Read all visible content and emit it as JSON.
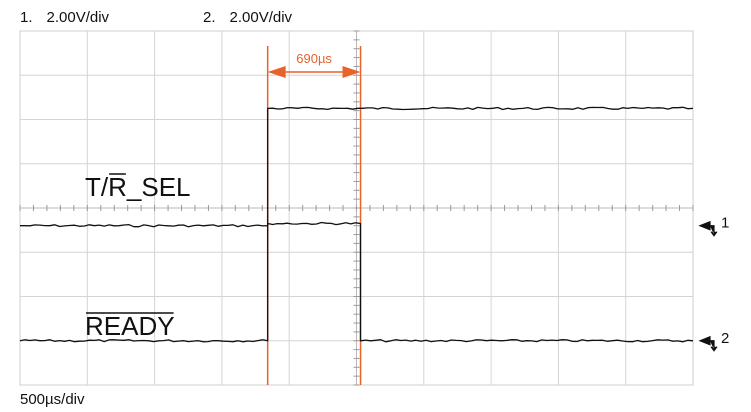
{
  "chart_data": {
    "type": "line",
    "title": "",
    "xlabel": "",
    "ylabel": "",
    "x_unit": "µs",
    "y_unit": "V",
    "divisions": {
      "x": 10,
      "y": 8
    },
    "x_range_us": [
      -2500,
      2500
    ],
    "channels": [
      {
        "id": 1,
        "scale_label": "2.00V/div",
        "volts_per_div": 2.0,
        "marker_label": "1"
      },
      {
        "id": 2,
        "scale_label": "2.00V/div",
        "volts_per_div": 2.0,
        "marker_label": "2"
      }
    ],
    "timebase_label": "500µs/div",
    "us_per_div": 500,
    "series": [
      {
        "name": "T/R_SEL",
        "label_main": "T/",
        "label_overbar": "R",
        "label_tail": "_SEL",
        "channel": 1,
        "color": "#111111",
        "points": [
          [
            -2500,
            0
          ],
          [
            -660,
            0
          ],
          [
            -660,
            5.3
          ],
          [
            2500,
            5.3
          ]
        ]
      },
      {
        "name": "READY",
        "label_overbar": "READY",
        "channel": 2,
        "color": "#111111",
        "points": [
          [
            -2500,
            0
          ],
          [
            -660,
            0
          ],
          [
            -660,
            5.3
          ],
          [
            30,
            5.3
          ],
          [
            30,
            0
          ],
          [
            2500,
            0
          ]
        ]
      }
    ],
    "cursors": {
      "color": "#e8622a",
      "t1_us": -660,
      "t2_us": 30,
      "delta_label": "690µs"
    },
    "grid": true
  }
}
